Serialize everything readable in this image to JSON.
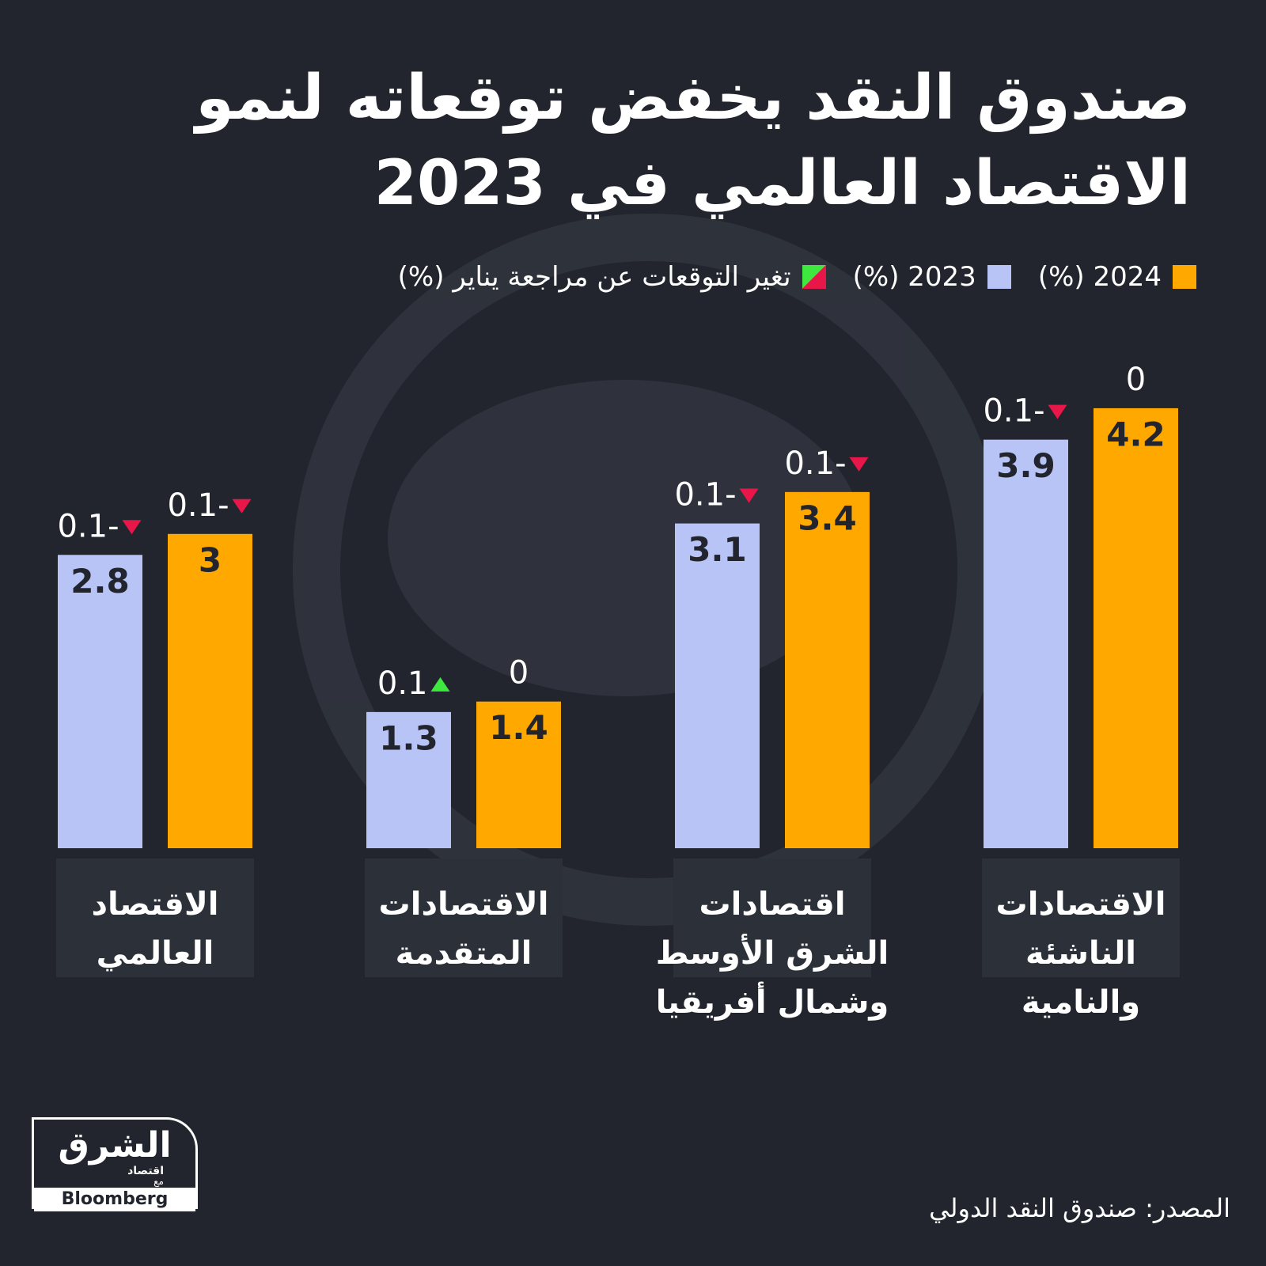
{
  "title": "صندوق النقد يخفض توقعاته لنمو الاقتصاد العالمي في 2023",
  "chart_data": {
    "type": "bar",
    "categories": [
      "الاقتصاد العالمي",
      "الاقتصادات المتقدمة",
      "اقتصادات الشرق الأوسط وشمال أفريقيا",
      "الاقتصادات الناشئة والنامية"
    ],
    "series": [
      {
        "name": "2023 (%)",
        "color": "#b8c3f6",
        "values": [
          2.8,
          1.3,
          3.1,
          3.9
        ],
        "change_values": [
          -0.1,
          0.1,
          -0.1,
          -0.1
        ],
        "change_labels": [
          "0.1-",
          "0.1",
          "0.1-",
          "0.1-"
        ]
      },
      {
        "name": "2024 (%)",
        "color": "#ffa800",
        "values": [
          3,
          1.4,
          3.4,
          4.2
        ],
        "change_values": [
          -0.1,
          0,
          -0.1,
          0
        ],
        "change_labels": [
          "0.1-",
          "0",
          "0.1-",
          "0"
        ]
      }
    ],
    "change_legend": "تغير التوقعات عن مراجعة يناير (%)",
    "up_color": "#3ee83e",
    "down_color": "#e8174a"
  },
  "source": "المصدر: صندوق النقد الدولي",
  "logo": {
    "name": "الشرق",
    "sub": "اقتصاد",
    "with": "مع",
    "partner": "Bloomberg"
  }
}
